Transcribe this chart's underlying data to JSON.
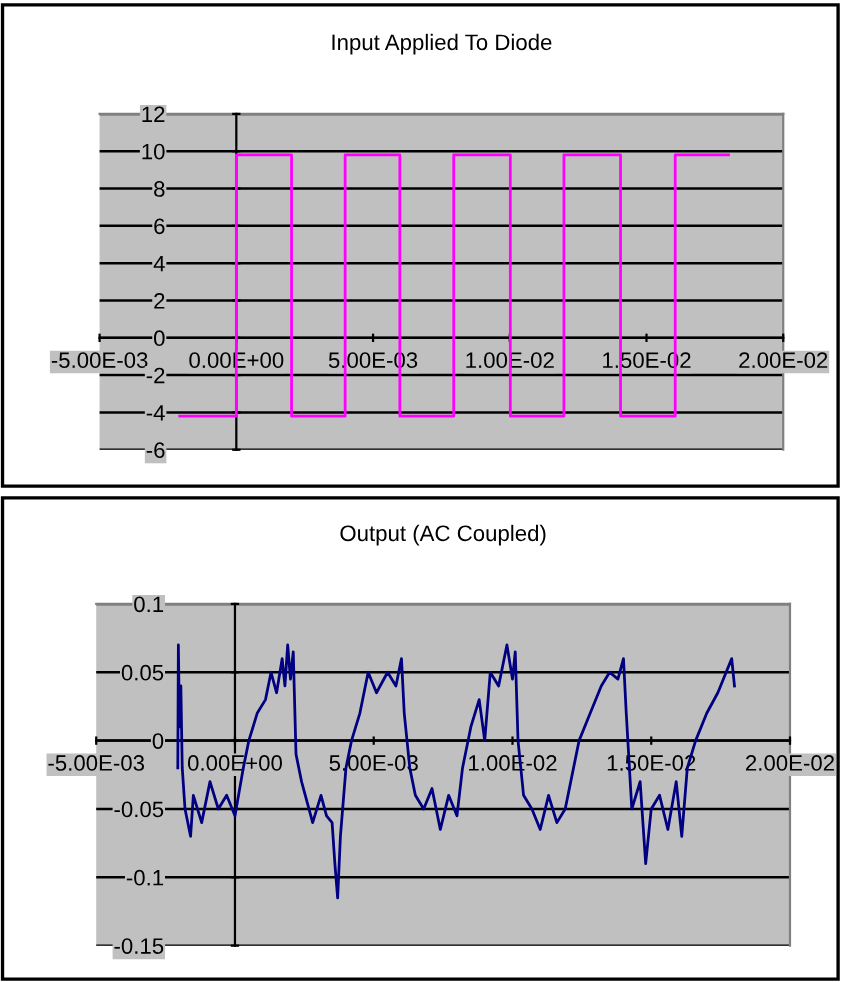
{
  "chart_data": [
    {
      "type": "line",
      "title": "Input Applied To Diode",
      "grid": "y",
      "series": [
        {
          "color": "#ff00ff",
          "x": [
            -0.00207,
            0.0,
            0.0,
            0.00202,
            0.00202,
            0.00398,
            0.00398,
            0.00598,
            0.00598,
            0.00795,
            0.00795,
            0.01002,
            0.01002,
            0.01198,
            0.01198,
            0.01405,
            0.01405,
            0.01605,
            0.01605,
            0.018
          ],
          "values": [
            -4.2,
            -4.2,
            9.8,
            9.8,
            -4.2,
            -4.2,
            9.8,
            9.8,
            -4.2,
            -4.2,
            9.8,
            9.8,
            -4.2,
            -4.2,
            9.8,
            9.8,
            -4.2,
            -4.2,
            9.8,
            9.8
          ]
        }
      ],
      "xlim": [
        -0.005,
        0.02
      ],
      "ylim": [
        -6,
        12
      ],
      "xticks": [
        {
          "value": -0.005,
          "label": "-5.00E-03"
        },
        {
          "value": 0,
          "label": "0.00E+00"
        },
        {
          "value": 0.005,
          "label": "5.00E-03"
        },
        {
          "value": 0.01,
          "label": "1.00E-02"
        },
        {
          "value": 0.015,
          "label": "1.50E-02"
        },
        {
          "value": 0.02,
          "label": "2.00E-02"
        }
      ],
      "yticks": [
        -6,
        -4,
        -2,
        0,
        2,
        4,
        6,
        8,
        10,
        12
      ]
    },
    {
      "type": "line",
      "title": "Output (AC Coupled)",
      "grid": "y",
      "series": [
        {
          "color": "#000080",
          "x": [
            -0.00206,
            -0.00204,
            -0.002,
            -0.00195,
            -0.0019,
            -0.0018,
            -0.0016,
            -0.0015,
            -0.0012,
            -0.0009,
            -0.0006,
            -0.0003,
            0.0,
            0.0003,
            0.0005,
            0.0008,
            0.0011,
            0.0013,
            0.0015,
            0.0017,
            0.0018,
            0.0019,
            0.002,
            0.0021,
            0.0022,
            0.0024,
            0.0026,
            0.0028,
            0.0031,
            0.0033,
            0.0035,
            0.0036,
            0.0037,
            0.0038,
            0.004,
            0.0042,
            0.0045,
            0.0048,
            0.0051,
            0.0055,
            0.0058,
            0.006,
            0.0061,
            0.0063,
            0.0065,
            0.0068,
            0.0071,
            0.0074,
            0.0077,
            0.008,
            0.0082,
            0.0085,
            0.0088,
            0.009,
            0.0092,
            0.0095,
            0.0098,
            0.01,
            0.0101,
            0.0102,
            0.0104,
            0.0107,
            0.011,
            0.0113,
            0.0116,
            0.0119,
            0.0121,
            0.0124,
            0.0128,
            0.0132,
            0.0135,
            0.0138,
            0.014,
            0.0141,
            0.0143,
            0.0146,
            0.0148,
            0.015,
            0.0153,
            0.0156,
            0.0159,
            0.0161,
            0.0163,
            0.0166,
            0.017,
            0.0174,
            0.0177,
            0.0179,
            0.018
          ],
          "values": [
            -0.02,
            0.07,
            0.01,
            0.04,
            -0.02,
            -0.05,
            -0.07,
            -0.04,
            -0.06,
            -0.03,
            -0.05,
            -0.04,
            -0.055,
            -0.02,
            0.0,
            0.02,
            0.03,
            0.05,
            0.035,
            0.06,
            0.04,
            0.07,
            0.045,
            0.065,
            -0.01,
            -0.03,
            -0.045,
            -0.06,
            -0.04,
            -0.055,
            -0.06,
            -0.09,
            -0.115,
            -0.07,
            -0.02,
            0.0,
            0.02,
            0.05,
            0.035,
            0.05,
            0.04,
            0.06,
            0.02,
            -0.02,
            -0.04,
            -0.05,
            -0.035,
            -0.065,
            -0.04,
            -0.055,
            -0.02,
            0.01,
            0.03,
            0.0,
            0.05,
            0.04,
            0.07,
            0.045,
            0.065,
            0.0,
            -0.04,
            -0.05,
            -0.065,
            -0.04,
            -0.06,
            -0.05,
            -0.03,
            0.0,
            0.02,
            0.04,
            0.05,
            0.045,
            0.06,
            0.02,
            -0.05,
            -0.03,
            -0.09,
            -0.05,
            -0.04,
            -0.065,
            -0.03,
            -0.07,
            -0.02,
            0.0,
            0.02,
            0.035,
            0.05,
            0.06,
            0.04
          ]
        }
      ],
      "xlim": [
        -0.005,
        0.02
      ],
      "ylim": [
        -0.15,
        0.1
      ],
      "xticks": [
        {
          "value": -0.005,
          "label": "-5.00E-03"
        },
        {
          "value": 0,
          "label": "0.00E+00"
        },
        {
          "value": 0.005,
          "label": "5.00E-03"
        },
        {
          "value": 0.01,
          "label": "1.00E-02"
        },
        {
          "value": 0.015,
          "label": "1.50E-02"
        },
        {
          "value": 0.02,
          "label": "2.00E-02"
        }
      ],
      "yticks": [
        -0.15,
        -0.1,
        -0.05,
        0,
        0.05,
        0.1
      ]
    }
  ]
}
